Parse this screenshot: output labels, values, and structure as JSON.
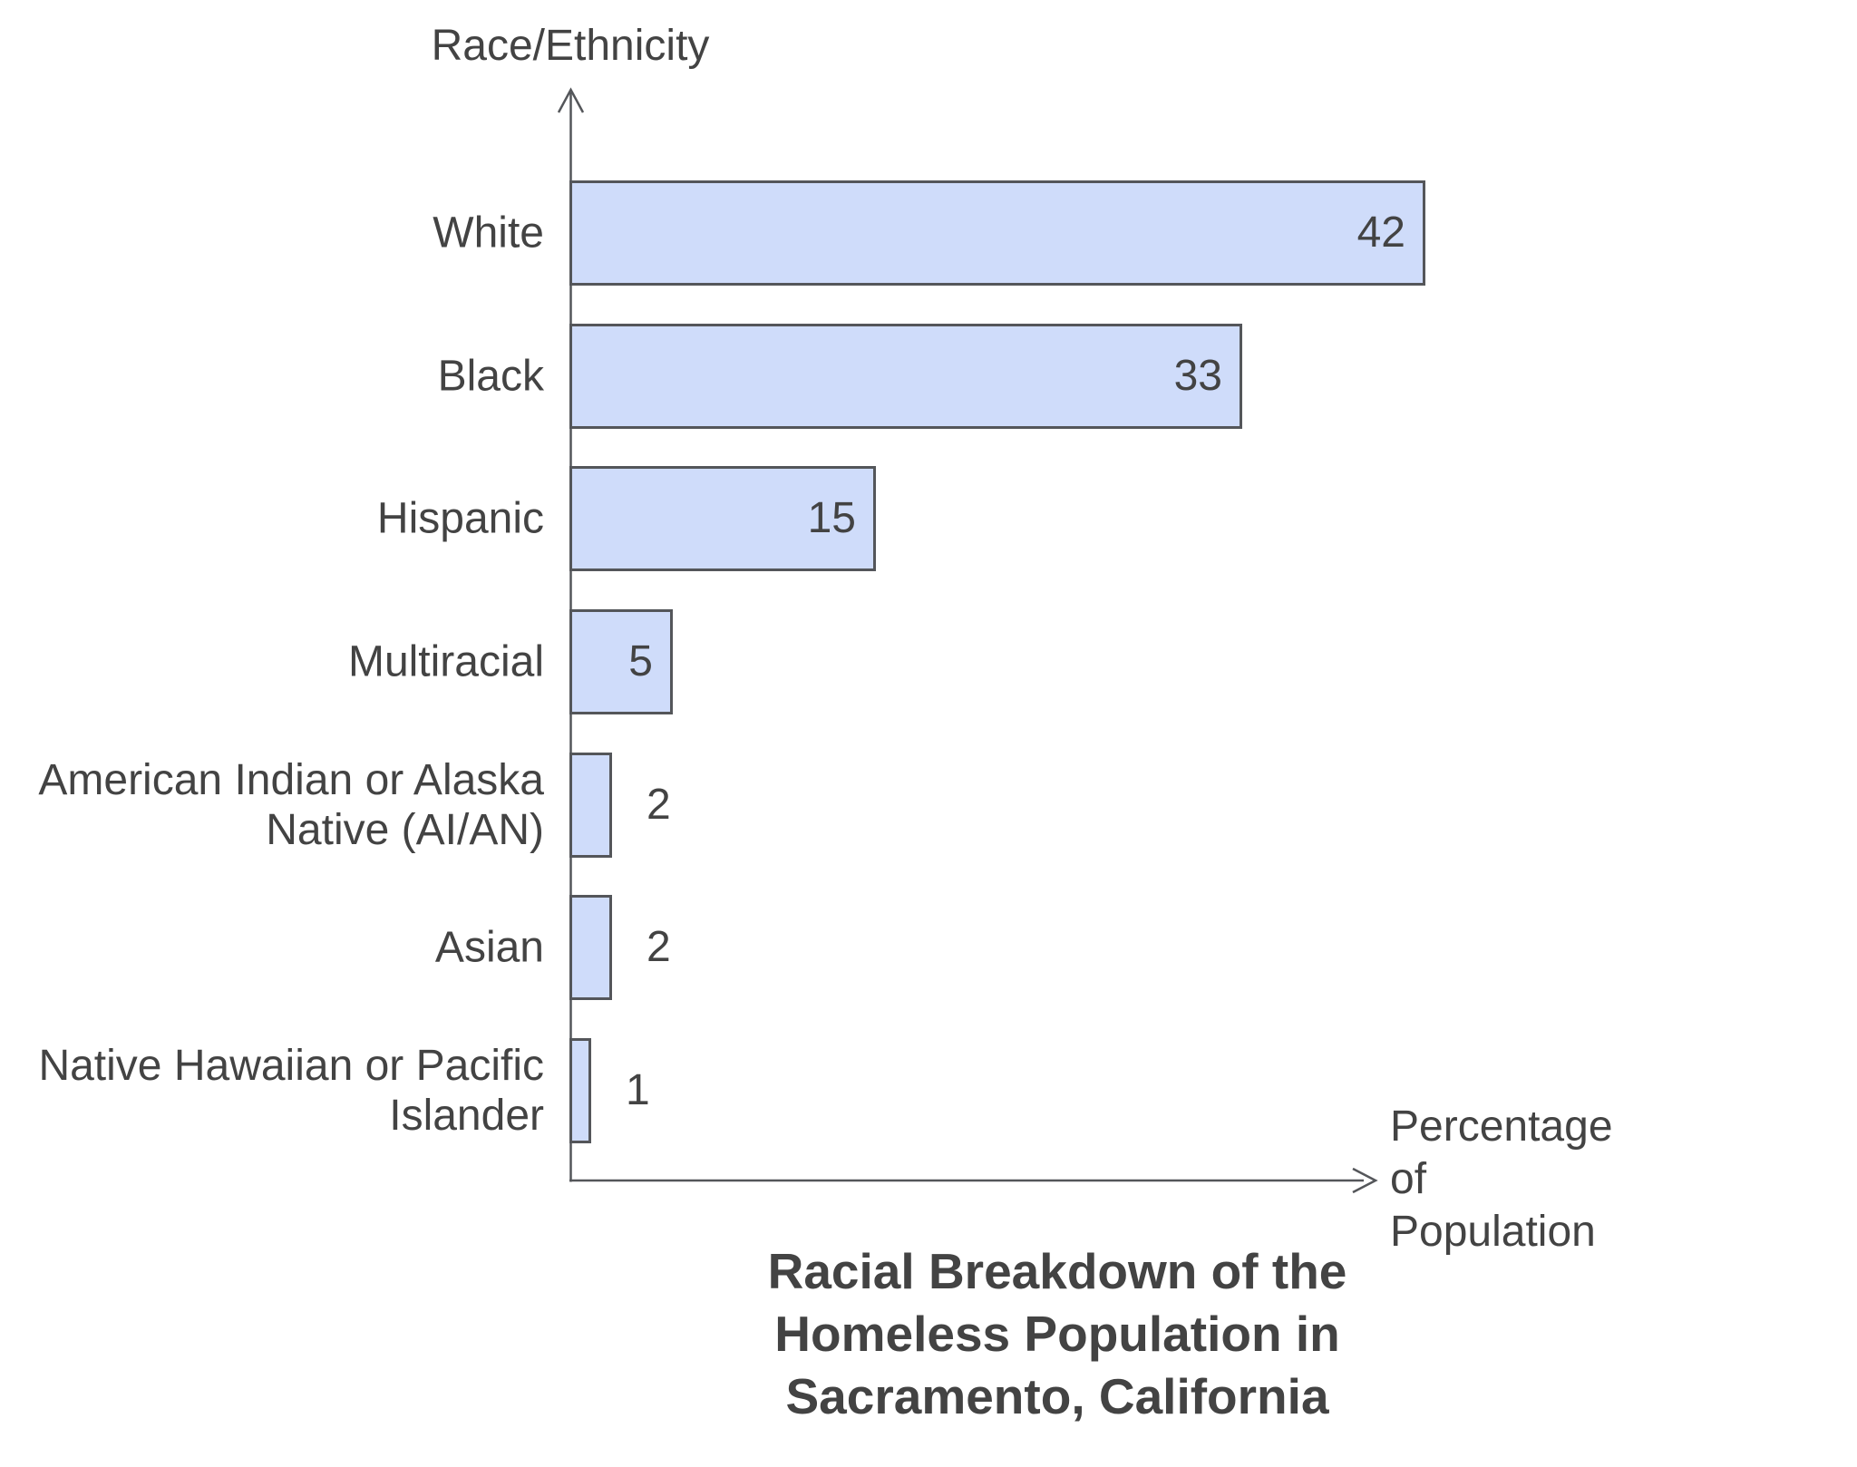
{
  "colors": {
    "text": "#434343",
    "axis": "#54565a",
    "bar_fill": "#cfdcfa",
    "bar_border": "#54565a"
  },
  "chart_data": {
    "type": "bar",
    "orientation": "horizontal",
    "title": "Racial Breakdown of the\nHomeless Population in\nSacramento, California",
    "ylabel": "Race/Ethnicity",
    "xlabel": "Percentage\nof\nPopulation",
    "categories": [
      "White",
      "Black",
      "Hispanic",
      "Multiracial",
      "American Indian or Alaska\nNative (AI/AN)",
      "Asian",
      "Native Hawaiian or Pacific\nIslander"
    ],
    "values": [
      42,
      33,
      15,
      5,
      2,
      2,
      1
    ],
    "value_labels": [
      "42",
      "33",
      "15",
      "5",
      "2",
      "2",
      "1"
    ],
    "grid": false,
    "legend": false,
    "axis_ticks": false
  }
}
